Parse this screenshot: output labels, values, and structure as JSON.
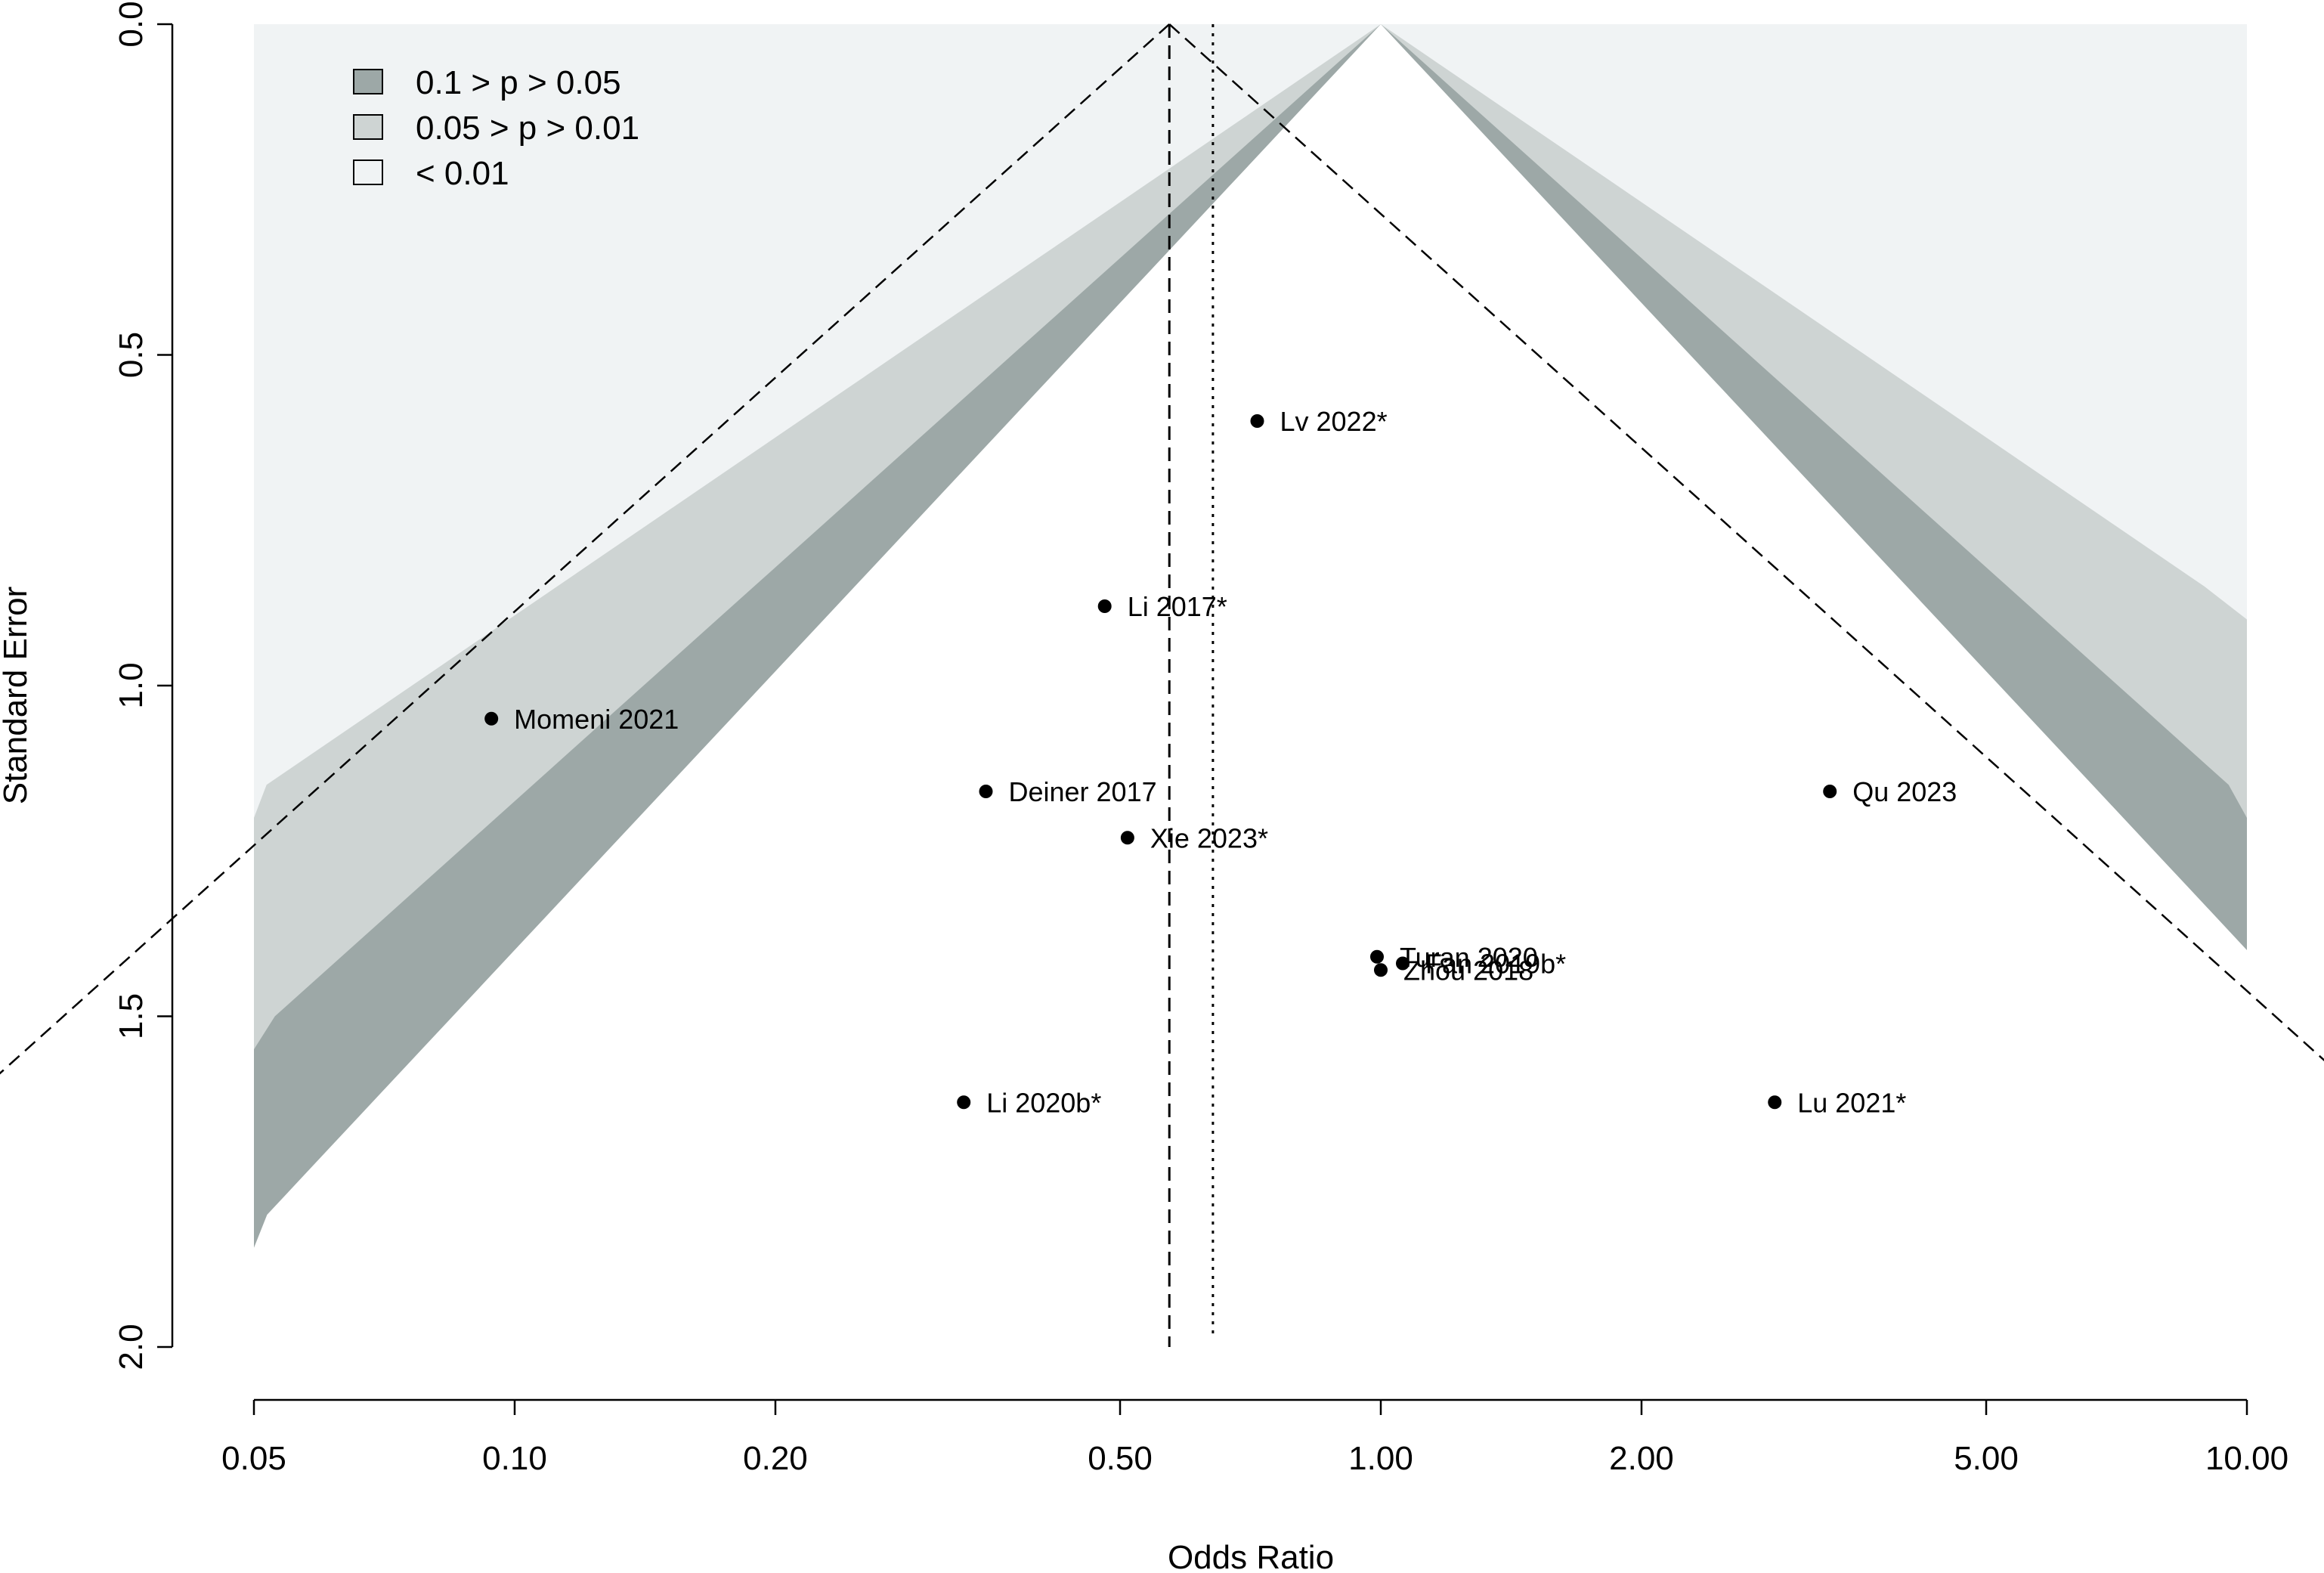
{
  "chart_data": {
    "type": "scatter",
    "subtype": "contour-enhanced funnel plot",
    "xlabel": "Odds Ratio",
    "ylabel": "Standard Error",
    "x_scale": "log",
    "y_inverted": true,
    "xlim": [
      0.05,
      10.0
    ],
    "ylim": [
      0.0,
      2.0
    ],
    "x_ticks": [
      "0.05",
      "0.10",
      "0.20",
      "0.50",
      "1.00",
      "2.00",
      "5.00",
      "10.00"
    ],
    "x_tick_values": [
      0.05,
      0.1,
      0.2,
      0.5,
      1.0,
      2.0,
      5.0,
      10.0
    ],
    "y_ticks": [
      "0.0",
      "0.5",
      "1.0",
      "1.5",
      "2.0"
    ],
    "y_tick_values": [
      0.0,
      0.5,
      1.0,
      1.5,
      2.0
    ],
    "legend": {
      "placement": "top-left",
      "entries": [
        {
          "label": "0.1 > p > 0.05",
          "color": "#9da8a7"
        },
        {
          "label": "0.05 > p > 0.01",
          "color": "#ced4d3"
        },
        {
          "label": "< 0.01",
          "color": "#f0f3f4"
        }
      ]
    },
    "colors": {
      "region_p10": "#9da8a7",
      "region_p05": "#ced4d3",
      "region_p01": "#f0f3f4",
      "points": "#000000"
    },
    "pooled_estimate_dashed": 0.57,
    "reference_dotted": 0.64,
    "points": [
      {
        "label": "Lv 2022*",
        "or": 0.72,
        "se": 0.6
      },
      {
        "label": "Li 2017*",
        "or": 0.48,
        "se": 0.88
      },
      {
        "label": "Momeni 2021",
        "or": 0.094,
        "se": 1.05
      },
      {
        "label": "Deiner 2017",
        "or": 0.35,
        "se": 1.16
      },
      {
        "label": "Xie 2023*",
        "or": 0.51,
        "se": 1.23
      },
      {
        "label": "Qu 2023",
        "or": 3.3,
        "se": 1.16
      },
      {
        "label": "Turan 2020",
        "or": 0.99,
        "se": 1.41
      },
      {
        "label": "Fan 2019b*",
        "or": 1.06,
        "se": 1.42
      },
      {
        "label": "Zhou 2018",
        "or": 1.0,
        "se": 1.43
      },
      {
        "label": "Li 2020b*",
        "or": 0.33,
        "se": 1.63
      },
      {
        "label": "Lu 2021*",
        "or": 2.85,
        "se": 1.63
      }
    ]
  }
}
